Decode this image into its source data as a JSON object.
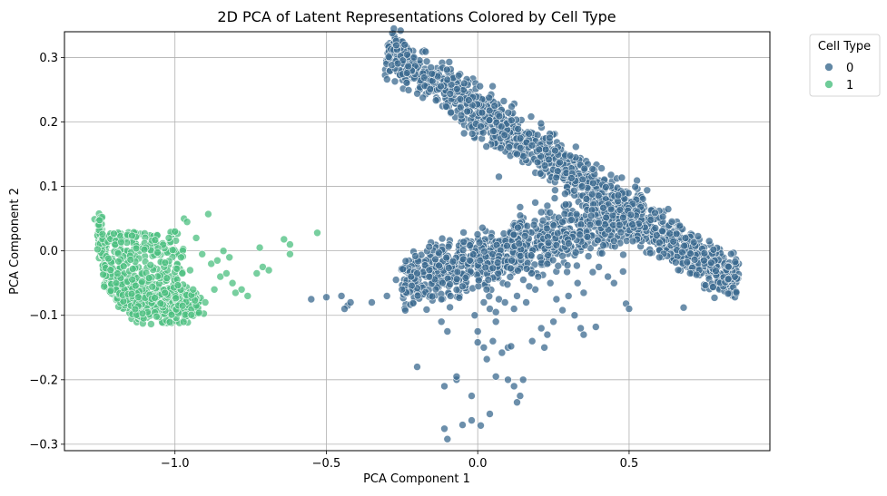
{
  "chart_data": {
    "type": "scatter",
    "title": "2D PCA of Latent Representations Colored by Cell Type",
    "xlabel": "PCA Component 1",
    "ylabel": "PCA Component 2",
    "xlim": [
      -1.365,
      0.965
    ],
    "ylim": [
      -0.31,
      0.34
    ],
    "xticks": [
      -1.0,
      -0.5,
      0.0,
      0.5
    ],
    "xtick_labels": [
      "−1.0",
      "−0.5",
      "0.0",
      "0.5"
    ],
    "yticks": [
      -0.3,
      -0.2,
      -0.1,
      0.0,
      0.1,
      0.2,
      0.3
    ],
    "ytick_labels": [
      "−0.3",
      "−0.2",
      "−0.1",
      "0.0",
      "0.1",
      "0.2",
      "0.3"
    ],
    "grid": true,
    "legend": {
      "title": "Cell Type",
      "placement": "outside-upper-right",
      "entries": [
        {
          "label": "0",
          "color": "#3b6a8f"
        },
        {
          "label": "1",
          "color": "#4bbf7f"
        }
      ]
    },
    "series": [
      {
        "name": "0",
        "color": "#3b6a8f",
        "regions": [
          {
            "kind": "band",
            "from": [
              -0.3,
              0.31
            ],
            "to": [
              0.86,
              -0.05
            ],
            "width": 0.035,
            "count": 1400
          },
          {
            "kind": "band",
            "from": [
              -0.25,
              -0.05
            ],
            "to": [
              0.55,
              0.06
            ],
            "width": 0.045,
            "count": 1000
          }
        ],
        "points": [
          [
            -0.55,
            -0.075
          ],
          [
            -0.5,
            -0.072
          ],
          [
            -0.45,
            -0.07
          ],
          [
            -0.43,
            -0.085
          ],
          [
            -0.44,
            -0.09
          ],
          [
            -0.42,
            -0.08
          ],
          [
            -0.35,
            -0.08
          ],
          [
            -0.3,
            -0.07
          ],
          [
            -0.27,
            -0.045
          ],
          [
            -0.25,
            -0.06
          ],
          [
            -0.22,
            -0.04
          ],
          [
            -0.2,
            -0.035
          ],
          [
            -0.2,
            -0.18
          ],
          [
            -0.12,
            -0.11
          ],
          [
            -0.1,
            -0.125
          ],
          [
            -0.11,
            -0.21
          ],
          [
            -0.07,
            -0.2
          ],
          [
            -0.07,
            -0.195
          ],
          [
            -0.11,
            -0.276
          ],
          [
            -0.1,
            -0.292
          ],
          [
            -0.05,
            -0.27
          ],
          [
            -0.02,
            -0.263
          ],
          [
            0.01,
            -0.271
          ],
          [
            0.04,
            -0.253
          ],
          [
            -0.02,
            -0.225
          ],
          [
            0.05,
            -0.14
          ],
          [
            0.06,
            -0.195
          ],
          [
            0.08,
            -0.158
          ],
          [
            0.1,
            -0.2
          ],
          [
            0.12,
            -0.21
          ],
          [
            0.15,
            -0.2
          ],
          [
            0.14,
            -0.225
          ],
          [
            0.13,
            -0.235
          ],
          [
            0.1,
            -0.15
          ],
          [
            0.11,
            -0.148
          ],
          [
            0.02,
            -0.15
          ],
          [
            0.03,
            -0.168
          ],
          [
            0.0,
            -0.142
          ],
          [
            -0.01,
            -0.1
          ],
          [
            0.02,
            -0.08
          ],
          [
            0.04,
            -0.09
          ],
          [
            0.06,
            -0.095
          ],
          [
            0.07,
            -0.075
          ],
          [
            0.09,
            -0.08
          ],
          [
            0.12,
            -0.09
          ],
          [
            0.13,
            -0.07
          ],
          [
            0.16,
            -0.08
          ],
          [
            0.19,
            -0.06
          ],
          [
            0.21,
            -0.12
          ],
          [
            0.23,
            -0.13
          ],
          [
            0.18,
            -0.14
          ],
          [
            0.22,
            -0.15
          ],
          [
            0.25,
            -0.11
          ],
          [
            0.28,
            -0.092
          ],
          [
            0.3,
            -0.07
          ],
          [
            0.33,
            -0.05
          ],
          [
            0.35,
            -0.065
          ],
          [
            0.38,
            -0.033
          ],
          [
            0.4,
            -0.025
          ],
          [
            0.43,
            -0.04
          ],
          [
            0.45,
            -0.05
          ],
          [
            0.48,
            -0.032
          ],
          [
            0.34,
            -0.12
          ],
          [
            0.35,
            -0.13
          ],
          [
            0.39,
            -0.118
          ],
          [
            0.32,
            -0.1
          ],
          [
            0.49,
            -0.082
          ],
          [
            0.5,
            -0.09
          ],
          [
            0.6,
            -0.01
          ],
          [
            0.68,
            -0.088
          ],
          [
            -0.12,
            -0.075
          ],
          [
            -0.09,
            -0.07
          ],
          [
            0.07,
            0.115
          ],
          [
            0.19,
            0.075
          ],
          [
            0.21,
            0.06
          ],
          [
            0.23,
            0.07
          ],
          [
            0.17,
            -0.055
          ],
          [
            0.2,
            -0.04
          ],
          [
            0.24,
            -0.05
          ],
          [
            0.26,
            -0.075
          ],
          [
            -0.04,
            -0.042
          ],
          [
            -0.05,
            -0.055
          ],
          [
            0.0,
            -0.125
          ],
          [
            0.06,
            -0.11
          ]
        ]
      },
      {
        "name": "1",
        "color": "#4bbf7f",
        "regions": [
          {
            "kind": "arc",
            "points": [
              [
                -1.25,
                0.04
              ],
              [
                -1.24,
                0.0
              ],
              [
                -1.22,
                -0.035
              ],
              [
                -1.19,
                -0.06
              ],
              [
                -1.15,
                -0.078
              ],
              [
                -1.1,
                -0.085
              ],
              [
                -1.05,
                -0.088
              ],
              [
                -1.0,
                -0.085
              ],
              [
                -0.96,
                -0.082
              ],
              [
                -0.92,
                -0.078
              ]
            ],
            "width": 0.012,
            "count": 500
          },
          {
            "kind": "blob",
            "x": [
              -1.22,
              -0.97
            ],
            "y": [
              -0.075,
              0.03
            ],
            "count": 260
          }
        ],
        "points": [
          [
            -0.97,
            0.05
          ],
          [
            -0.96,
            0.045
          ],
          [
            -0.89,
            0.057
          ],
          [
            -0.93,
            0.02
          ],
          [
            -0.91,
            -0.005
          ],
          [
            -0.88,
            -0.02
          ],
          [
            -0.86,
            -0.015
          ],
          [
            -0.84,
            0.0
          ],
          [
            -0.82,
            -0.01
          ],
          [
            -0.85,
            -0.04
          ],
          [
            -0.83,
            -0.035
          ],
          [
            -0.81,
            -0.05
          ],
          [
            -0.8,
            -0.065
          ],
          [
            -0.78,
            -0.06
          ],
          [
            -0.76,
            -0.07
          ],
          [
            -0.73,
            -0.035
          ],
          [
            -0.72,
            0.005
          ],
          [
            -0.71,
            -0.025
          ],
          [
            -0.69,
            -0.03
          ],
          [
            -0.64,
            0.018
          ],
          [
            -0.62,
            0.01
          ],
          [
            -0.62,
            -0.005
          ],
          [
            -0.53,
            0.028
          ],
          [
            -0.9,
            -0.08
          ],
          [
            -0.87,
            -0.06
          ],
          [
            -0.95,
            -0.03
          ],
          [
            -0.98,
            -0.01
          ],
          [
            -1.0,
            0.03
          ],
          [
            -1.02,
            0.02
          ],
          [
            -0.94,
            -0.06
          ]
        ]
      }
    ]
  }
}
